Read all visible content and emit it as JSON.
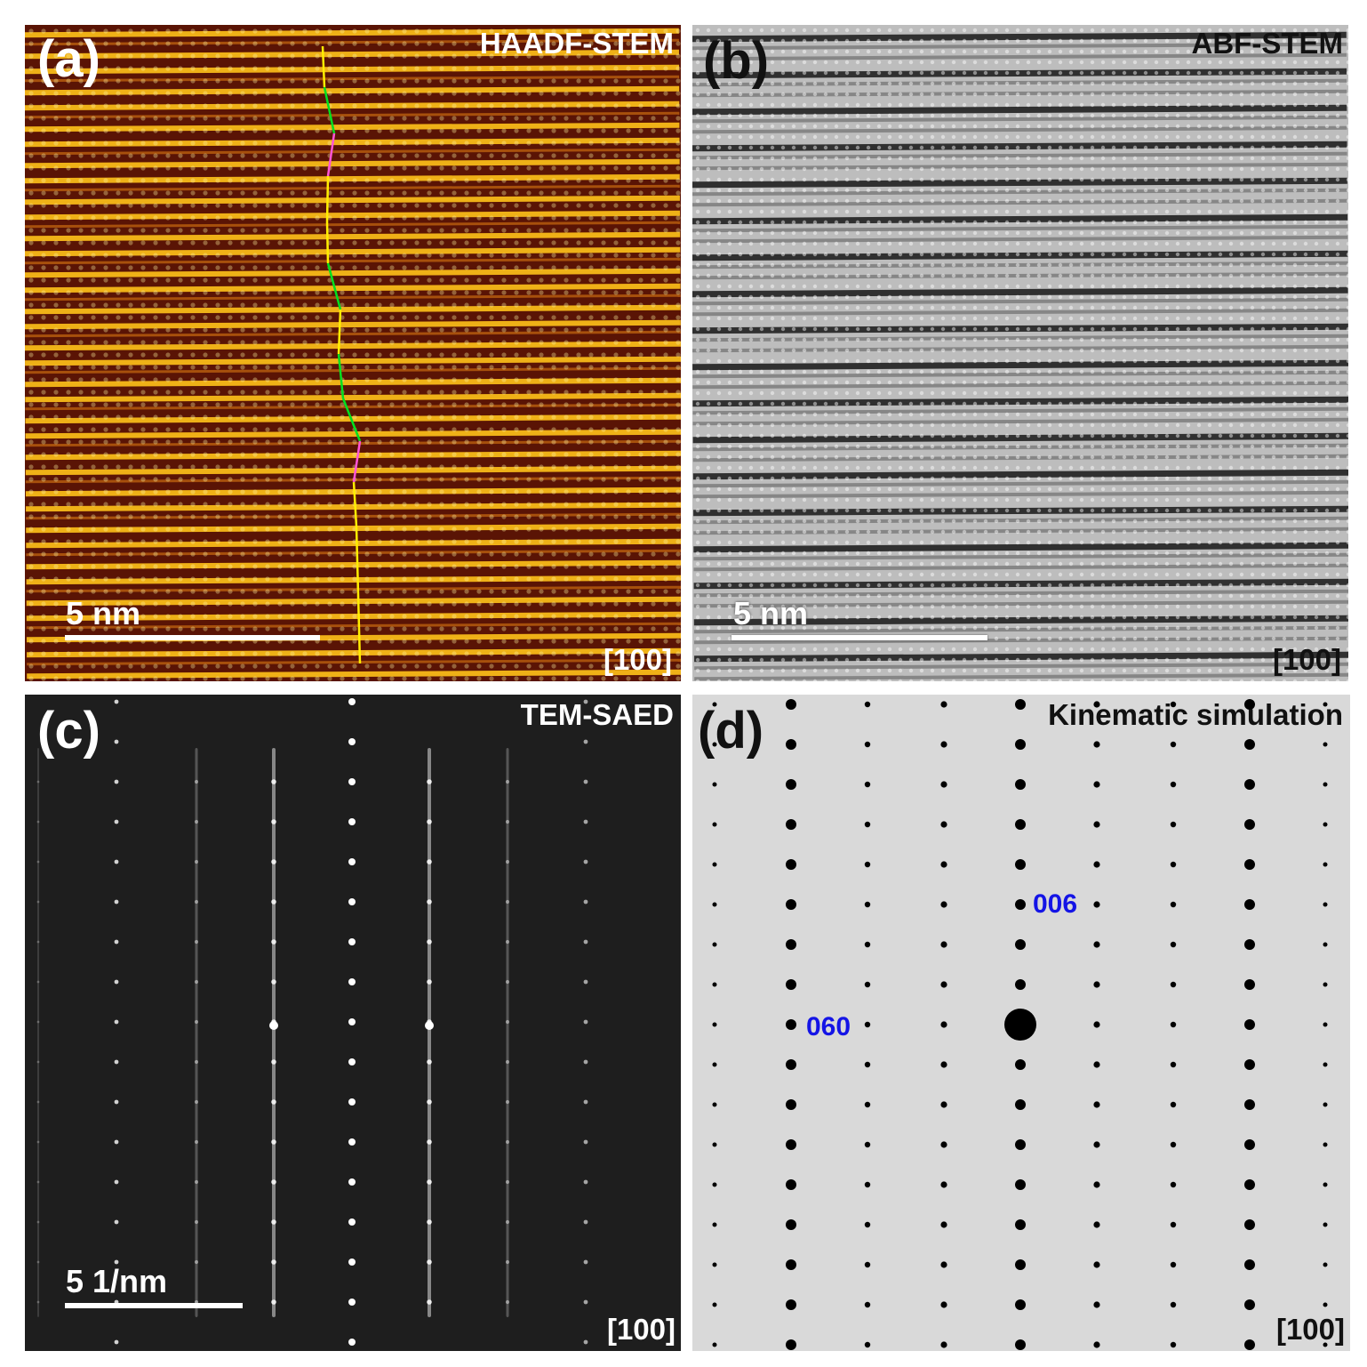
{
  "figure": {
    "panel_a": {
      "label": "(a)",
      "mode": "HAADF-STEM",
      "zone_axis": "[100]",
      "scale_bar": "5 nm",
      "colors": {
        "background": "#5a1405",
        "fringe": "#ffc21a",
        "guide_straight": "#ffee00",
        "guide_green": "#00e020",
        "guide_magenta": "#ff55d8"
      }
    },
    "panel_b": {
      "label": "(b)",
      "mode": "ABF-STEM",
      "zone_axis": "[100]",
      "scale_bar": "5 nm"
    },
    "panel_c": {
      "label": "(c)",
      "mode": "TEM-SAED",
      "zone_axis": "[100]",
      "scale_bar": "5 1/nm"
    },
    "panel_d": {
      "label": "(d)",
      "mode": "Kinematic simulation",
      "zone_axis": "[100]",
      "index_labels": [
        "006",
        "060"
      ],
      "colors": {
        "background": "#d9d9d9",
        "spot": "#000000",
        "index_label": "#1414e6"
      }
    }
  }
}
